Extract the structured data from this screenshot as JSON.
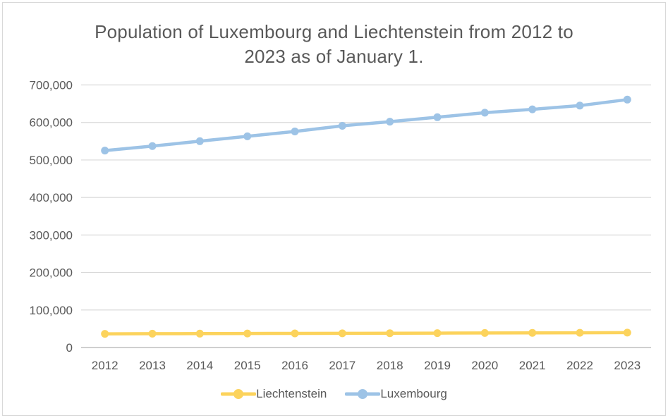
{
  "chart": {
    "colors": {
      "grid": "#D9D9D9",
      "axis": "#BFBFBF",
      "text": "#595959",
      "border": "#D9D9D9",
      "background": "#FFFFFF"
    }
  },
  "chart_data": {
    "type": "line",
    "title": "Population of Luxembourg and Liechtenstein from 2012 to 2023 as of January 1.",
    "xlabel": "",
    "ylabel": "",
    "categories": [
      "2012",
      "2013",
      "2014",
      "2015",
      "2016",
      "2017",
      "2018",
      "2019",
      "2020",
      "2021",
      "2022",
      "2023"
    ],
    "series": [
      {
        "name": "Liechtenstein",
        "color": "#FCD35C",
        "values": [
          36500,
          36800,
          37100,
          37400,
          37600,
          37800,
          38100,
          38400,
          38700,
          39100,
          39300,
          39600
        ]
      },
      {
        "name": "Luxembourg",
        "color": "#9DC3E6",
        "values": [
          525000,
          537000,
          550000,
          563000,
          576000,
          591000,
          602000,
          614000,
          626000,
          635000,
          645000,
          661000
        ]
      }
    ],
    "ylim": [
      0,
      700000
    ],
    "yticks": [
      {
        "value": 0,
        "label": "0"
      },
      {
        "value": 100000,
        "label": "100,000"
      },
      {
        "value": 200000,
        "label": "200,000"
      },
      {
        "value": 300000,
        "label": "300,000"
      },
      {
        "value": 400000,
        "label": "400,000"
      },
      {
        "value": 500000,
        "label": "500,000"
      },
      {
        "value": 600000,
        "label": "600,000"
      },
      {
        "value": 700000,
        "label": "700,000"
      }
    ],
    "grid": "horizontal-only",
    "legend_position": "bottom",
    "marker": "circle"
  }
}
